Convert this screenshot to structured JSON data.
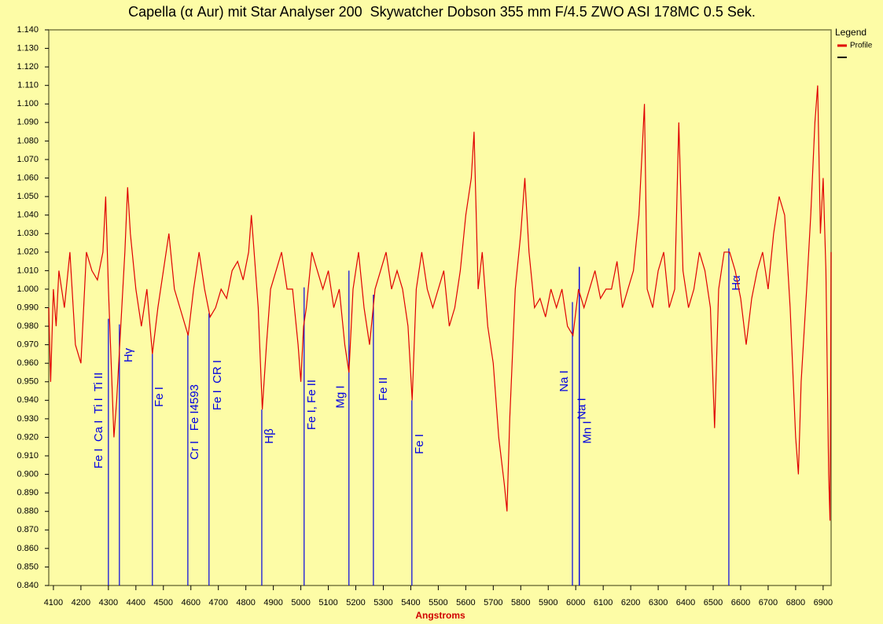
{
  "chart_data": {
    "type": "line",
    "title": "Capella (α Aur) mit Star Analyser 200  Skywatcher Dobson 355 mm F/4.5 ZWO ASI 178MC 0.5 Sek.",
    "x_label": "Angstroms",
    "legend_title": "Legend",
    "series": [
      {
        "name": "Profile",
        "color": "#e00000",
        "x": [
          4083,
          4090,
          4100,
          4110,
          4120,
          4140,
          4160,
          4180,
          4200,
          4220,
          4240,
          4260,
          4280,
          4290,
          4300,
          4310,
          4320,
          4330,
          4345,
          4360,
          4370,
          4380,
          4400,
          4420,
          4440,
          4460,
          4480,
          4500,
          4520,
          4540,
          4560,
          4580,
          4590,
          4610,
          4630,
          4650,
          4670,
          4690,
          4710,
          4730,
          4750,
          4770,
          4790,
          4810,
          4820,
          4830,
          4845,
          4860,
          4875,
          4890,
          4910,
          4930,
          4950,
          4970,
          4990,
          5000,
          5010,
          5020,
          5040,
          5060,
          5080,
          5100,
          5120,
          5140,
          5160,
          5175,
          5190,
          5210,
          5230,
          5250,
          5270,
          5290,
          5310,
          5330,
          5350,
          5370,
          5390,
          5405,
          5420,
          5440,
          5460,
          5480,
          5500,
          5520,
          5540,
          5560,
          5580,
          5600,
          5620,
          5630,
          5645,
          5660,
          5680,
          5700,
          5720,
          5740,
          5750,
          5760,
          5780,
          5800,
          5815,
          5830,
          5850,
          5870,
          5890,
          5910,
          5930,
          5950,
          5970,
          5990,
          6010,
          6030,
          6050,
          6070,
          6090,
          6110,
          6130,
          6150,
          6170,
          6190,
          6210,
          6230,
          6250,
          6260,
          6280,
          6300,
          6320,
          6340,
          6360,
          6375,
          6390,
          6410,
          6430,
          6450,
          6470,
          6490,
          6505,
          6520,
          6540,
          6560,
          6580,
          6600,
          6620,
          6640,
          6660,
          6680,
          6700,
          6720,
          6740,
          6760,
          6780,
          6800,
          6810,
          6820,
          6840,
          6855,
          6870,
          6880,
          6890,
          6900,
          6910,
          6920,
          6925,
          6929
        ],
        "values": [
          0.99,
          0.95,
          1.0,
          0.98,
          1.01,
          0.99,
          1.02,
          0.97,
          0.96,
          1.02,
          1.01,
          1.005,
          1.02,
          1.05,
          1.0,
          0.96,
          0.92,
          0.94,
          0.98,
          1.02,
          1.055,
          1.03,
          1.0,
          0.98,
          1.0,
          0.965,
          0.99,
          1.01,
          1.03,
          1.0,
          0.99,
          0.98,
          0.975,
          1.0,
          1.02,
          1.0,
          0.985,
          0.99,
          1.0,
          0.995,
          1.01,
          1.015,
          1.005,
          1.02,
          1.04,
          1.02,
          0.99,
          0.935,
          0.97,
          1.0,
          1.01,
          1.02,
          1.0,
          1.0,
          0.97,
          0.95,
          0.98,
          0.99,
          1.02,
          1.01,
          1.0,
          1.01,
          0.99,
          1.0,
          0.97,
          0.955,
          1.0,
          1.02,
          0.99,
          0.97,
          1.0,
          1.01,
          1.02,
          1.0,
          1.01,
          1.0,
          0.98,
          0.94,
          1.0,
          1.02,
          1.0,
          0.99,
          1.0,
          1.01,
          0.98,
          0.99,
          1.01,
          1.04,
          1.06,
          1.085,
          1.0,
          1.02,
          0.98,
          0.96,
          0.92,
          0.895,
          0.88,
          0.93,
          1.0,
          1.03,
          1.06,
          1.02,
          0.99,
          0.995,
          0.985,
          1.0,
          0.99,
          1.0,
          0.98,
          0.975,
          1.0,
          0.99,
          1.0,
          1.01,
          0.995,
          1.0,
          1.0,
          1.015,
          0.99,
          1.0,
          1.01,
          1.04,
          1.1,
          1.0,
          0.99,
          1.01,
          1.02,
          0.99,
          1.0,
          1.09,
          1.01,
          0.99,
          1.0,
          1.02,
          1.01,
          0.99,
          0.925,
          1.0,
          1.02,
          1.02,
          1.01,
          0.995,
          0.97,
          0.995,
          1.01,
          1.02,
          1.0,
          1.03,
          1.05,
          1.04,
          0.99,
          0.92,
          0.9,
          0.95,
          1.0,
          1.04,
          1.09,
          1.11,
          1.03,
          1.06,
          1.01,
          0.9,
          0.875,
          1.02
        ]
      }
    ],
    "annotations": [
      {
        "label": "Fe I  Ca I  Ti I  Ti II",
        "x": 4300,
        "top": 0.984
      },
      {
        "label": "Hγ",
        "x": 4340,
        "top": 0.981
      },
      {
        "label": "Fe I",
        "x": 4460,
        "top": 0.965
      },
      {
        "label": "Cr I   Fe I4593",
        "x": 4589,
        "top": 0.976
      },
      {
        "label": "Fe I  CR I",
        "x": 4666,
        "top": 0.987
      },
      {
        "label": "Hβ",
        "x": 4858,
        "top": 0.935
      },
      {
        "label": "Fe I, Fe II",
        "x": 5012,
        "top": 1.001
      },
      {
        "label": "Mg I",
        "x": 5175,
        "top": 1.01
      },
      {
        "label": "Fe II",
        "x": 5264,
        "top": 0.997
      },
      {
        "label": "Fe I",
        "x": 5404,
        "top": 0.94
      },
      {
        "label": "Na I",
        "x": 5988,
        "top": 0.993
      },
      {
        "label": "Na I",
        "x": 6013,
        "top": 1.012
      },
      {
        "label": "Mn I",
        "x": 6013,
        "top": 1.012
      },
      {
        "label": "Hα",
        "x": 6557,
        "top": 1.022
      }
    ],
    "annotation_color": "#0000e0",
    "xlim": [
      4083,
      6929
    ],
    "ylim": [
      0.84,
      1.14
    ],
    "xticks": [
      4100,
      4200,
      4300,
      4400,
      4500,
      4600,
      4700,
      4800,
      4900,
      5000,
      5100,
      5200,
      5300,
      5400,
      5500,
      5600,
      5700,
      5800,
      5900,
      6000,
      6100,
      6200,
      6300,
      6400,
      6500,
      6600,
      6700,
      6800,
      6900
    ],
    "yticks": [
      {
        "value": 0.84,
        "label": "0.840"
      },
      {
        "value": 0.85,
        "label": "0.850"
      },
      {
        "value": 0.86,
        "label": "0.860"
      },
      {
        "value": 0.87,
        "label": "0.870"
      },
      {
        "value": 0.88,
        "label": "0.880"
      },
      {
        "value": 0.89,
        "label": "0.890"
      },
      {
        "value": 0.9,
        "label": "0.900"
      },
      {
        "value": 0.91,
        "label": "0.910"
      },
      {
        "value": 0.92,
        "label": "0.920"
      },
      {
        "value": 0.93,
        "label": "0.930"
      },
      {
        "value": 0.94,
        "label": "0.940"
      },
      {
        "value": 0.95,
        "label": "0.950"
      },
      {
        "value": 0.96,
        "label": "0.960"
      },
      {
        "value": 0.97,
        "label": "0.970"
      },
      {
        "value": 0.98,
        "label": "0.980"
      },
      {
        "value": 0.99,
        "label": "0.990"
      },
      {
        "value": 1.0,
        "label": "1.000"
      },
      {
        "value": 1.01,
        "label": "1.010"
      },
      {
        "value": 1.02,
        "label": "1.020"
      },
      {
        "value": 1.03,
        "label": "1.030"
      },
      {
        "value": 1.04,
        "label": "1.040"
      },
      {
        "value": 1.05,
        "label": "1.050"
      },
      {
        "value": 1.06,
        "label": "1.060"
      },
      {
        "value": 1.07,
        "label": "1.070"
      },
      {
        "value": 1.08,
        "label": "1.080"
      },
      {
        "value": 1.09,
        "label": "1.090"
      },
      {
        "value": 1.1,
        "label": "1.100"
      },
      {
        "value": 1.11,
        "label": "1.110"
      },
      {
        "value": 1.12,
        "label": "1.120"
      },
      {
        "value": 1.13,
        "label": "1.130"
      },
      {
        "value": 1.14,
        "label": "1.140"
      }
    ]
  }
}
